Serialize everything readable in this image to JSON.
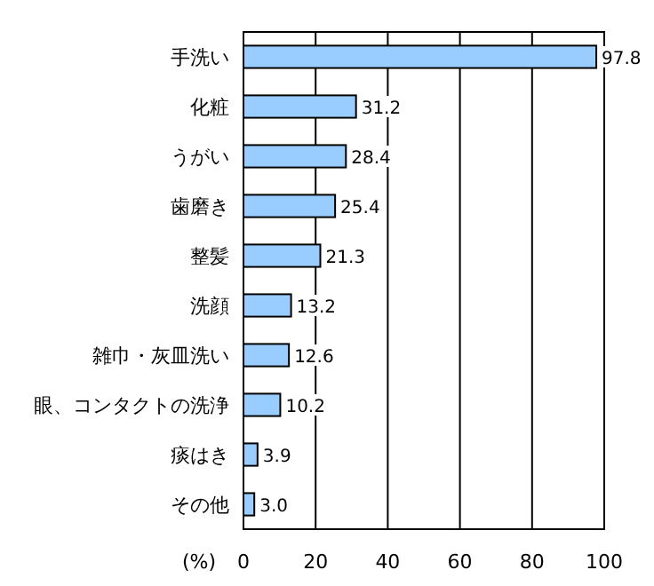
{
  "chart_data": {
    "type": "bar",
    "orientation": "horizontal",
    "categories": [
      "手洗い",
      "化粧",
      "うがい",
      "歯磨き",
      "整髪",
      "洗顔",
      "雑巾・灰皿洗い",
      "眼、コンタクトの洗浄",
      "痰はき",
      "その他"
    ],
    "values": [
      97.8,
      31.2,
      28.4,
      25.4,
      21.3,
      13.2,
      12.6,
      10.2,
      3.9,
      3.0
    ],
    "color": "#99ccff",
    "xlim": [
      0,
      100
    ],
    "xticks": [
      0,
      20,
      40,
      60,
      80,
      100
    ],
    "value_labels": [
      "97.8",
      "31.2",
      "28.4",
      "25.4",
      "21.3",
      "13.2",
      "12.6",
      "10.2",
      "3.9",
      "3.0"
    ],
    "xlabel": "(%)",
    "grid": "x"
  }
}
